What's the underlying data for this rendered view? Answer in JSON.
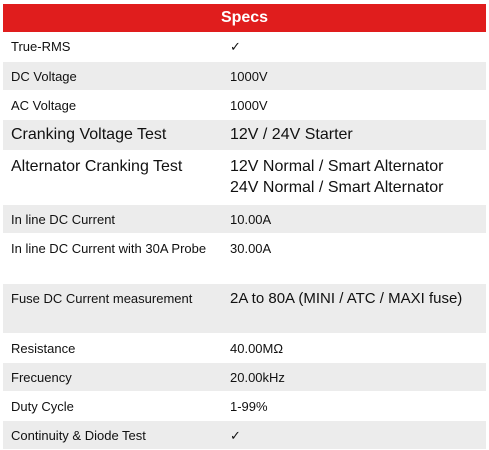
{
  "table": {
    "header": "Specs",
    "rows": [
      {
        "label": "True-RMS",
        "value": "✓"
      },
      {
        "label": "DC Voltage",
        "value": "1000V"
      },
      {
        "label": "AC Voltage",
        "value": "1000V"
      },
      {
        "label": "Cranking Voltage Test",
        "value": "12V / 24V Starter"
      },
      {
        "label": "Alternator Cranking Test",
        "value_line1": "12V Normal / Smart Alternator",
        "value_line2": "24V Normal / Smart Alternator"
      },
      {
        "label": "In line DC Current",
        "value": "10.00A"
      },
      {
        "label": "In line DC Current with 30A Probe",
        "value": "30.00A"
      },
      {
        "label": "Fuse DC Current measurement",
        "value": "2A to 80A (MINI / ATC / MAXI fuse)"
      },
      {
        "label": "Resistance",
        "value": "40.00MΩ"
      },
      {
        "label": "Frecuency",
        "value": "20.00kHz"
      },
      {
        "label": "Duty Cycle",
        "value": "1-99%"
      },
      {
        "label": "Continuity & Diode Test",
        "value": "✓"
      }
    ]
  }
}
